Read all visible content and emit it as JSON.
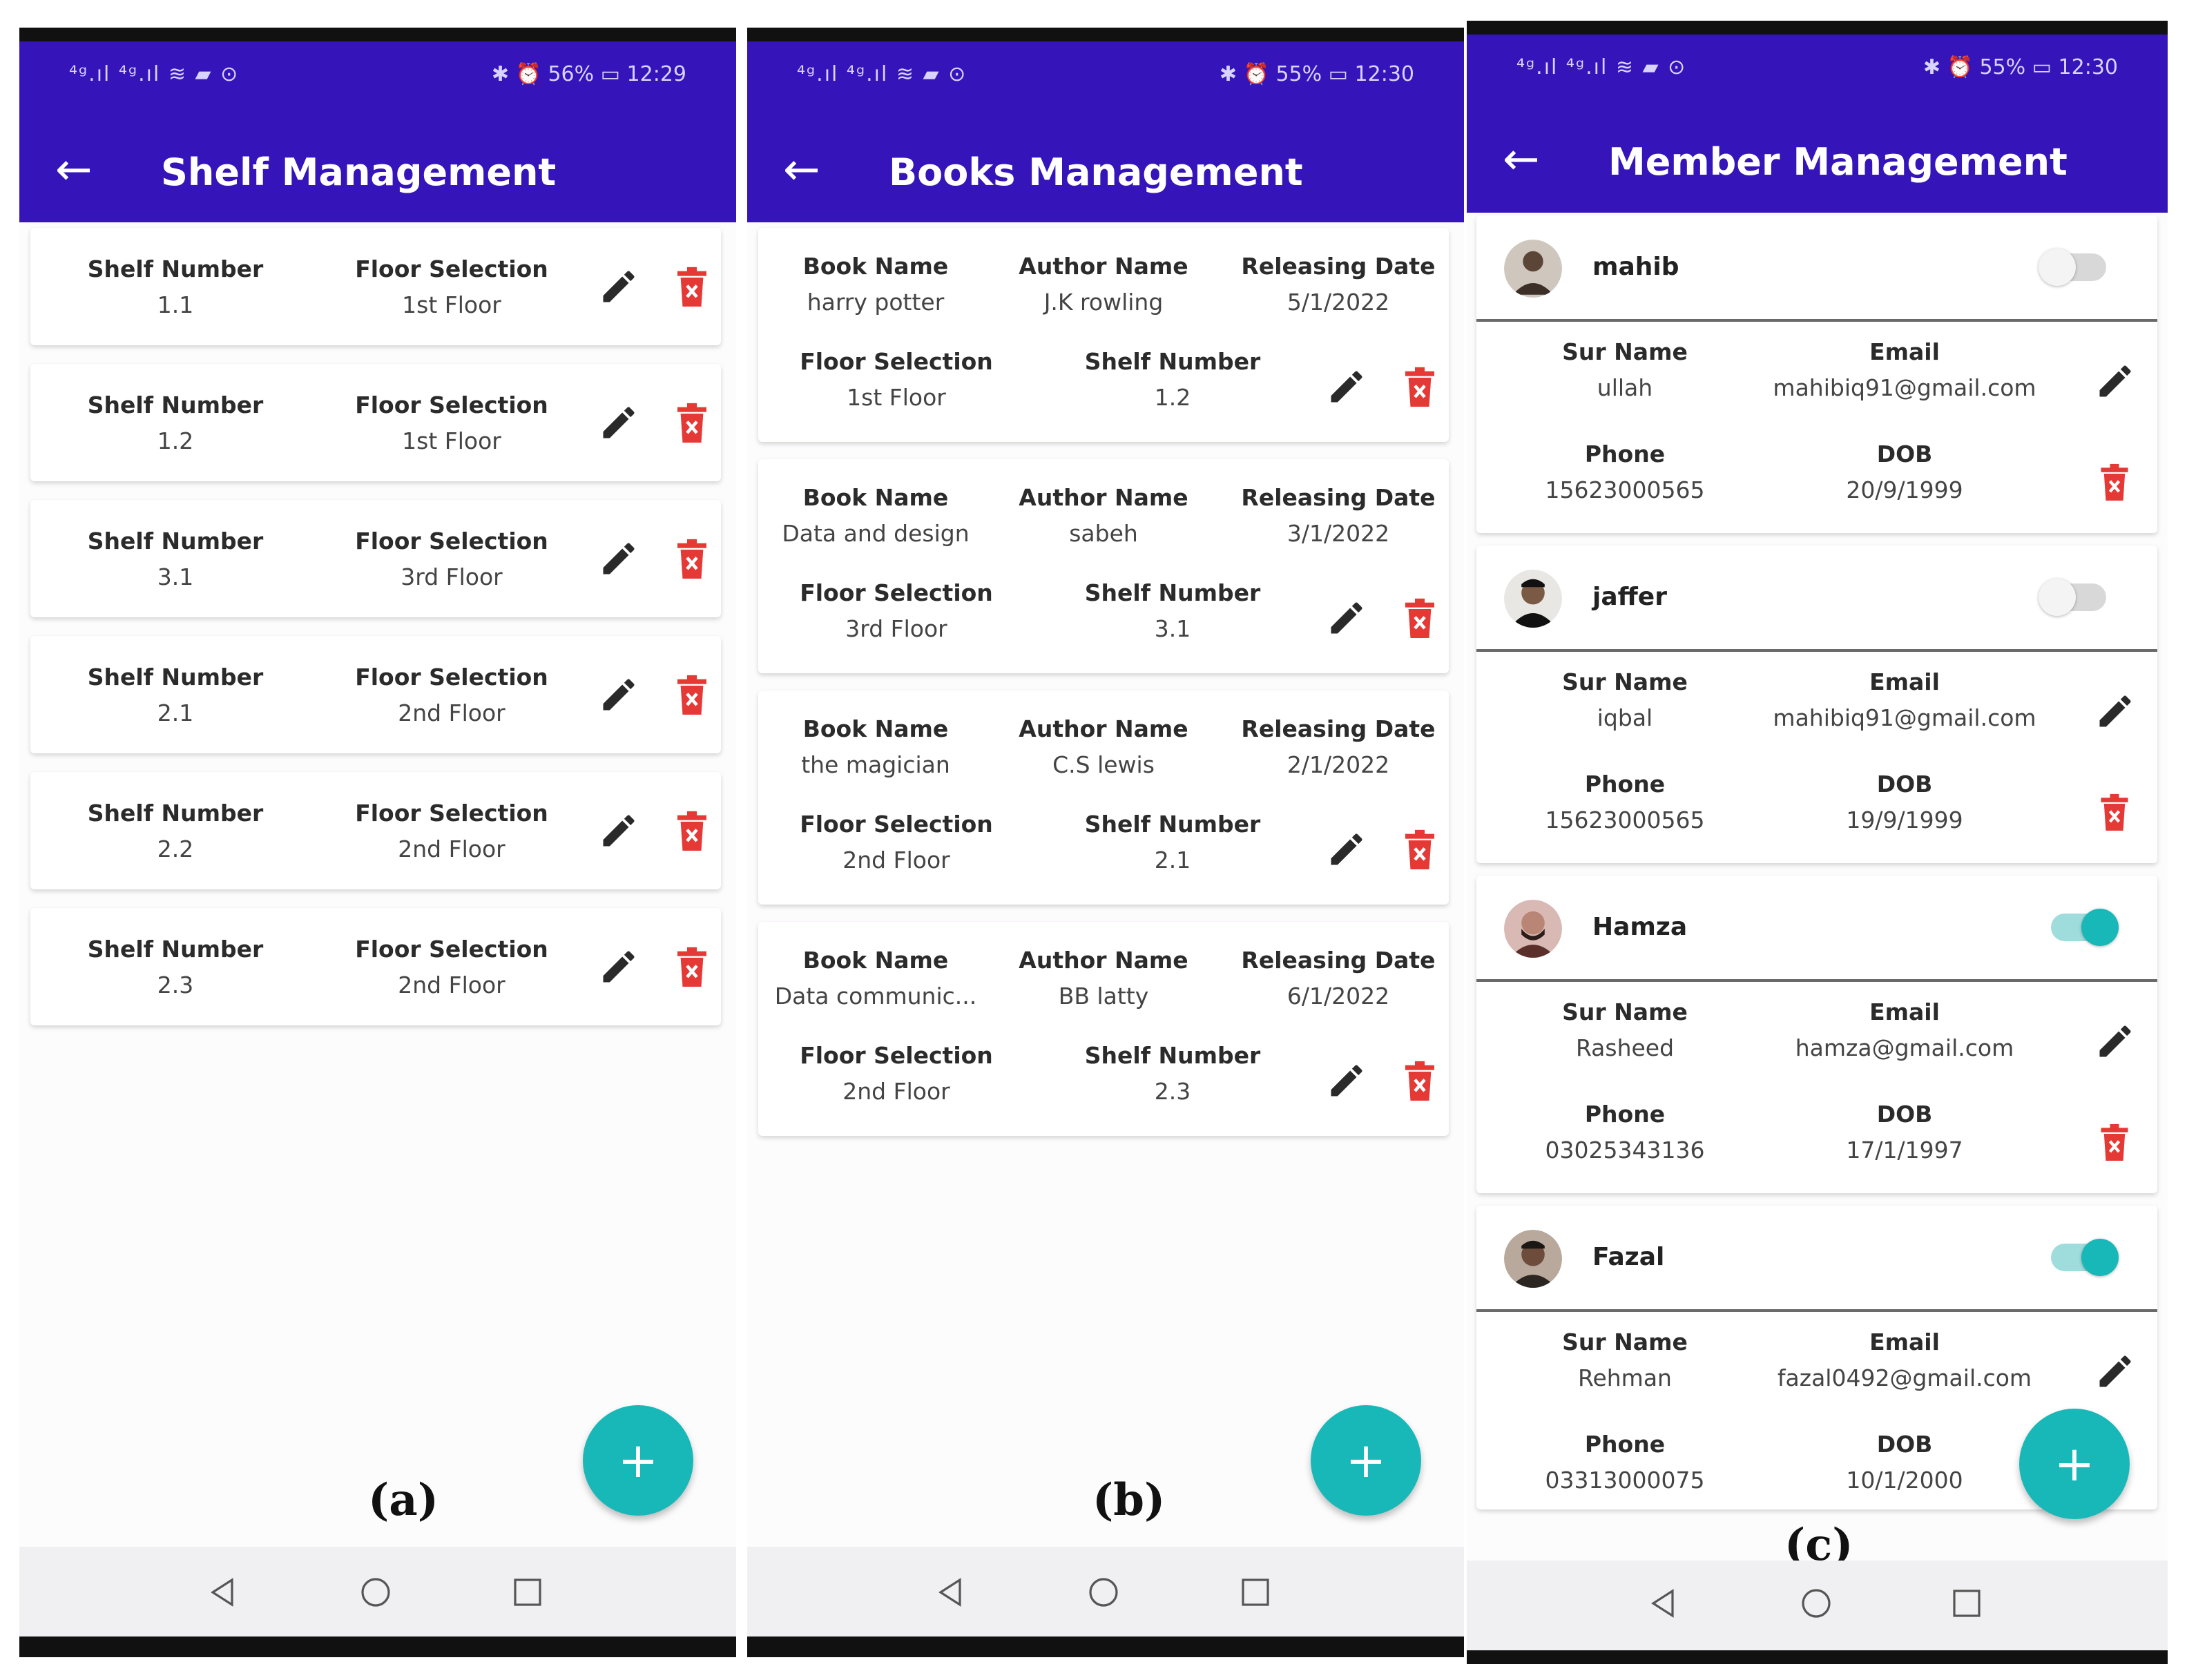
{
  "status_bar_left": "⁴ᵍ.ıl ⁴ᵍ.ıl ≋ ▰ ⊙",
  "colors": {
    "appbar": "#3514b9",
    "fab": "#19b8b8",
    "delete": "#e53935",
    "toggle_on": "#19b8b8",
    "toggle_off": "#d8d8d8"
  },
  "screens": [
    {
      "status_right": "✱ ⏰ 56% ▭ 12:29",
      "title": "Shelf Management",
      "caption": "(a)",
      "cards": [
        {
          "shelf_label": "Shelf Number",
          "shelf": "1.1",
          "floor_label": "Floor Selection",
          "floor": "1st Floor"
        },
        {
          "shelf_label": "Shelf Number",
          "shelf": "1.2",
          "floor_label": "Floor Selection",
          "floor": "1st Floor"
        },
        {
          "shelf_label": "Shelf Number",
          "shelf": "3.1",
          "floor_label": "Floor Selection",
          "floor": "3rd Floor"
        },
        {
          "shelf_label": "Shelf Number",
          "shelf": "2.1",
          "floor_label": "Floor Selection",
          "floor": "2nd Floor"
        },
        {
          "shelf_label": "Shelf Number",
          "shelf": "2.2",
          "floor_label": "Floor Selection",
          "floor": "2nd Floor"
        },
        {
          "shelf_label": "Shelf Number",
          "shelf": "2.3",
          "floor_label": "Floor Selection",
          "floor": "2nd Floor"
        }
      ],
      "fab": "+"
    },
    {
      "status_right": "✱ ⏰ 55% ▭ 12:30",
      "title": "Books Management",
      "caption": "(b)",
      "cards": [
        {
          "book_label": "Book Name",
          "book": "harry potter",
          "author_label": "Author Name",
          "author": "J.K rowling",
          "date_label": "Releasing Date",
          "date": "5/1/2022",
          "floor_label": "Floor Selection",
          "floor": "1st Floor",
          "shelf_label": "Shelf Number",
          "shelf": "1.2"
        },
        {
          "book_label": "Book Name",
          "book": "Data and design",
          "author_label": "Author Name",
          "author": "sabeh",
          "date_label": "Releasing Date",
          "date": "3/1/2022",
          "floor_label": "Floor Selection",
          "floor": "3rd Floor",
          "shelf_label": "Shelf Number",
          "shelf": "3.1"
        },
        {
          "book_label": "Book Name",
          "book": "the magician",
          "author_label": "Author Name",
          "author": "C.S lewis",
          "date_label": "Releasing Date",
          "date": "2/1/2022",
          "floor_label": "Floor Selection",
          "floor": "2nd Floor",
          "shelf_label": "Shelf Number",
          "shelf": "2.1"
        },
        {
          "book_label": "Book Name",
          "book": "Data communic...",
          "author_label": "Author Name",
          "author": "BB latty",
          "date_label": "Releasing Date",
          "date": "6/1/2022",
          "floor_label": "Floor Selection",
          "floor": "2nd Floor",
          "shelf_label": "Shelf Number",
          "shelf": "2.3"
        }
      ],
      "fab": "+"
    },
    {
      "status_right": "✱ ⏰ 55% ▭ 12:30",
      "title": "Member Management",
      "caption": "(c)",
      "members": [
        {
          "name": "mahib",
          "active": false,
          "surname_label": "Sur Name",
          "surname": "ullah",
          "email_label": "Email",
          "email": "mahibiq91@gmail.com",
          "phone_label": "Phone",
          "phone": "15623000565",
          "dob_label": "DOB",
          "dob": "20/9/1999"
        },
        {
          "name": "jaffer",
          "active": false,
          "surname_label": "Sur Name",
          "surname": "iqbal",
          "email_label": "Email",
          "email": "mahibiq91@gmail.com",
          "phone_label": "Phone",
          "phone": "15623000565",
          "dob_label": "DOB",
          "dob": "19/9/1999"
        },
        {
          "name": "Hamza",
          "active": true,
          "surname_label": "Sur Name",
          "surname": "Rasheed",
          "email_label": "Email",
          "email": "hamza@gmail.com",
          "phone_label": "Phone",
          "phone": "03025343136",
          "dob_label": "DOB",
          "dob": "17/1/1997"
        },
        {
          "name": "Fazal",
          "active": true,
          "surname_label": "Sur Name",
          "surname": "Rehman",
          "email_label": "Email",
          "email": "fazal0492@gmail.com",
          "phone_label": "Phone",
          "phone": "03313000075",
          "dob_label": "DOB",
          "dob": "10/1/2000"
        }
      ],
      "fab": "+"
    }
  ]
}
